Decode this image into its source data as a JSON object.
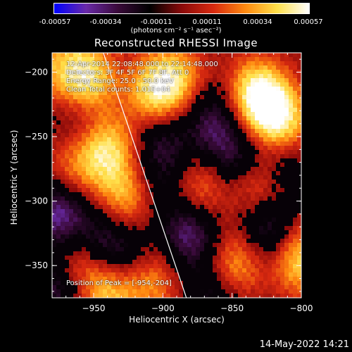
{
  "colorbar": {
    "ticks": [
      "-0.00057",
      "-0.00034",
      "-0.00011",
      "0.00011",
      "0.00034",
      "0.00057"
    ],
    "unit_label": "(photons cm⁻² s⁻¹ asec⁻²)"
  },
  "info": {
    "time_range": "12-Apr-2014 22:08:48.000 to 22:14:48.000",
    "detectors": "Detectors: 3F 4F 5F 6F 7F 8F, Att 0",
    "energy_range": "Energy Range: 25.0 - 50.0 keV",
    "clean": "Clean  Total counts: 1.01E+04",
    "peak": "Position of Peak = [-954,-204]"
  },
  "timestamp": "14-May-2022 14:21",
  "chart_data": {
    "type": "heatmap",
    "title": "Reconstructed RHESSI Image",
    "xlabel": "Heliocentric X (arcsec)",
    "ylabel": "Heliocentric Y (arcsec)",
    "xlim": [
      -980,
      -800
    ],
    "ylim": [
      -375,
      -185
    ],
    "xticks": [
      -950,
      -900,
      -850,
      -800
    ],
    "yticks": [
      -200,
      -250,
      -300,
      -350
    ],
    "colorbar_range": [
      -0.00057,
      0.00057
    ],
    "colormap": [
      "#0000ff",
      "#6a2aa8",
      "#3a0a3a",
      "#000000",
      "#8a0a0a",
      "#d82a10",
      "#ff8a10",
      "#ffe04a",
      "#ffffff"
    ],
    "peak_position": [
      -954,
      -204
    ],
    "limb_line": [
      [
        -943,
        -185
      ],
      [
        -883,
        -375
      ]
    ],
    "sources": [
      {
        "x": -955,
        "y": -205,
        "value": 0.00052
      },
      {
        "x": -940,
        "y": -260,
        "value": 0.00044
      },
      {
        "x": -928,
        "y": -300,
        "value": 0.00036
      },
      {
        "x": -965,
        "y": -275,
        "value": 0.00026
      },
      {
        "x": -960,
        "y": -345,
        "value": 0.00032
      },
      {
        "x": -905,
        "y": -215,
        "value": 0.00046
      },
      {
        "x": -888,
        "y": -205,
        "value": 0.0003
      },
      {
        "x": -832,
        "y": -218,
        "value": 0.00057
      },
      {
        "x": -815,
        "y": -238,
        "value": 0.0005
      },
      {
        "x": -873,
        "y": -290,
        "value": 0.00032
      },
      {
        "x": -830,
        "y": -290,
        "value": 0.00034
      },
      {
        "x": -848,
        "y": -350,
        "value": 0.0004
      },
      {
        "x": -800,
        "y": -345,
        "value": 0.00044
      },
      {
        "x": -908,
        "y": -362,
        "value": 0.0003
      },
      {
        "x": -940,
        "y": -372,
        "value": 0.00038
      },
      {
        "x": -980,
        "y": -195,
        "value": 0.00024
      },
      {
        "x": -900,
        "y": -250,
        "value": -0.00022
      },
      {
        "x": -865,
        "y": -235,
        "value": -0.00028
      },
      {
        "x": -880,
        "y": -325,
        "value": -0.0004
      },
      {
        "x": -945,
        "y": -330,
        "value": -0.00034
      },
      {
        "x": -975,
        "y": -310,
        "value": -0.00044
      },
      {
        "x": -850,
        "y": -265,
        "value": -0.0003
      },
      {
        "x": -825,
        "y": -320,
        "value": -0.00036
      },
      {
        "x": -815,
        "y": -270,
        "value": -0.00024
      },
      {
        "x": -960,
        "y": -235,
        "value": -0.00018
      },
      {
        "x": -925,
        "y": -340,
        "value": -0.0002
      },
      {
        "x": -860,
        "y": -372,
        "value": -0.00026
      },
      {
        "x": -975,
        "y": -370,
        "value": -0.0003
      },
      {
        "x": -900,
        "y": -280,
        "value": -0.00018
      }
    ]
  }
}
